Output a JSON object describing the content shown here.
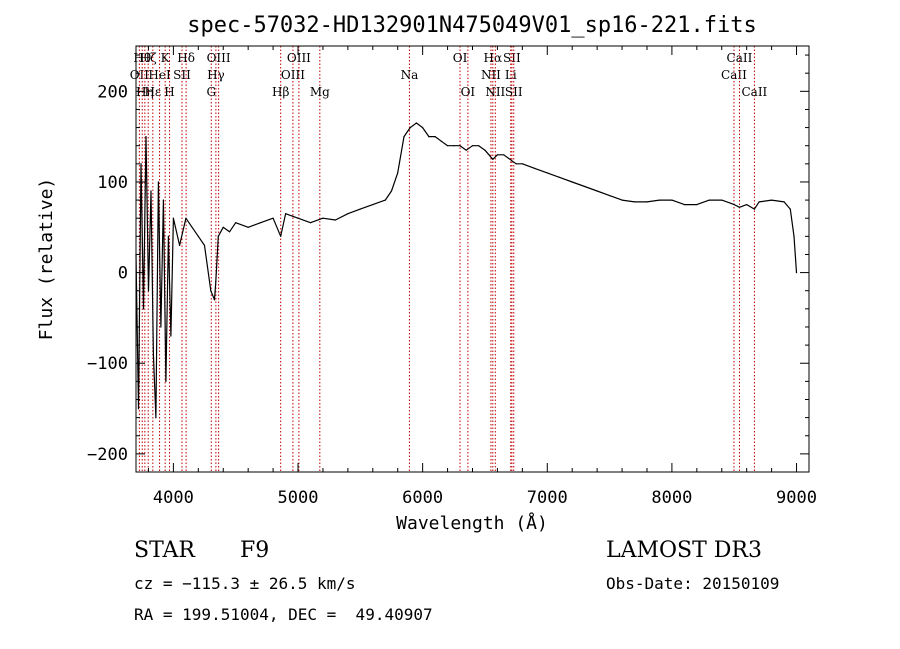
{
  "chart_data": {
    "type": "line",
    "title": "spec-57032-HD132901N475049V01_sp16-221.fits",
    "xlabel": "Wavelength (Å)",
    "ylabel": "Flux (relative)",
    "xlim": [
      3700,
      9100
    ],
    "ylim": [
      -220,
      250
    ],
    "xticks": [
      4000,
      5000,
      6000,
      7000,
      8000,
      9000
    ],
    "yticks": [
      -200,
      -100,
      0,
      100,
      200
    ],
    "yticklabels": [
      "−200",
      "−100",
      "0",
      "100",
      "200"
    ],
    "series": [
      {
        "name": "spectrum",
        "x": [
          3700,
          3720,
          3740,
          3760,
          3780,
          3800,
          3820,
          3840,
          3860,
          3880,
          3900,
          3920,
          3940,
          3960,
          3980,
          4000,
          4050,
          4100,
          4150,
          4200,
          4250,
          4300,
          4330,
          4340,
          4360,
          4400,
          4450,
          4500,
          4600,
          4700,
          4800,
          4861,
          4900,
          5000,
          5100,
          5200,
          5300,
          5400,
          5500,
          5600,
          5700,
          5750,
          5800,
          5850,
          5900,
          5950,
          6000,
          6050,
          6100,
          6150,
          6200,
          6250,
          6300,
          6350,
          6400,
          6450,
          6500,
          6563,
          6600,
          6650,
          6700,
          6750,
          6800,
          6900,
          7000,
          7100,
          7200,
          7300,
          7400,
          7500,
          7600,
          7700,
          7800,
          7900,
          8000,
          8100,
          8200,
          8300,
          8400,
          8500,
          8542,
          8600,
          8662,
          8700,
          8800,
          8900,
          8950,
          8980,
          9000
        ],
        "y": [
          20,
          -150,
          120,
          -40,
          150,
          -20,
          90,
          -90,
          -160,
          100,
          -60,
          80,
          -120,
          40,
          -70,
          60,
          30,
          60,
          50,
          40,
          30,
          -20,
          -30,
          -10,
          40,
          50,
          45,
          55,
          50,
          55,
          60,
          40,
          65,
          60,
          55,
          60,
          58,
          65,
          70,
          75,
          80,
          90,
          110,
          150,
          160,
          165,
          160,
          150,
          150,
          145,
          140,
          140,
          140,
          135,
          140,
          140,
          135,
          125,
          130,
          130,
          125,
          120,
          120,
          115,
          110,
          105,
          100,
          95,
          90,
          85,
          80,
          78,
          78,
          80,
          80,
          75,
          75,
          80,
          80,
          75,
          72,
          75,
          70,
          78,
          80,
          78,
          70,
          40,
          0
        ]
      }
    ],
    "lines": [
      {
        "x": 3727,
        "label": "OII",
        "row": 2
      },
      {
        "x": 3750,
        "label": "Hθ",
        "row": 1
      },
      {
        "x": 3771,
        "label": "Hη",
        "row": 3
      },
      {
        "x": 3798,
        "label": "Hζ",
        "row": 1
      },
      {
        "x": 3835,
        "label": "Hε",
        "row": 3
      },
      {
        "x": 3889,
        "label": "HeI",
        "row": 2
      },
      {
        "x": 3934,
        "label": "K",
        "row": 1
      },
      {
        "x": 3969,
        "label": "H",
        "row": 3
      },
      {
        "x": 4069,
        "label": "SII",
        "row": 2
      },
      {
        "x": 4102,
        "label": "Hδ",
        "row": 1
      },
      {
        "x": 4304,
        "label": "G",
        "row": 3
      },
      {
        "x": 4341,
        "label": "Hγ",
        "row": 2
      },
      {
        "x": 4363,
        "label": "OIII",
        "row": 1
      },
      {
        "x": 4861,
        "label": "Hβ",
        "row": 3
      },
      {
        "x": 4959,
        "label": "OIII",
        "row": 2
      },
      {
        "x": 5007,
        "label": "OIII",
        "row": 1
      },
      {
        "x": 5175,
        "label": "Mg",
        "row": 3
      },
      {
        "x": 5894,
        "label": "Na",
        "row": 2
      },
      {
        "x": 6300,
        "label": "OI",
        "row": 1
      },
      {
        "x": 6363,
        "label": "OI",
        "row": 3
      },
      {
        "x": 6548,
        "label": "NII",
        "row": 2
      },
      {
        "x": 6563,
        "label": "Hα",
        "row": 1
      },
      {
        "x": 6583,
        "label": "NII",
        "row": 3
      },
      {
        "x": 6707,
        "label": "Li",
        "row": 2
      },
      {
        "x": 6716,
        "label": "SII",
        "row": 1
      },
      {
        "x": 6731,
        "label": "SII",
        "row": 3
      },
      {
        "x": 8498,
        "label": "CaII",
        "row": 2
      },
      {
        "x": 8542,
        "label": "CaII",
        "row": 1
      },
      {
        "x": 8662,
        "label": "CaII",
        "row": 3
      }
    ]
  },
  "footer": {
    "object_class": "STAR",
    "subclass": "F9",
    "survey": "LAMOST DR3",
    "cz": "cz = −115.3 ± 26.5 km/s",
    "obs_date": "Obs-Date: 20150109",
    "coords": "RA = 199.51004, DEC =  49.40907"
  }
}
